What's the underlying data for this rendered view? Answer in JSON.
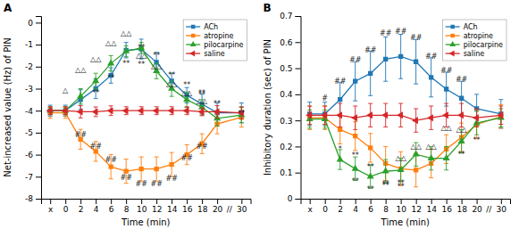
{
  "chart_data": [
    {
      "type": "line",
      "title": "A",
      "x_label": "Time (min)",
      "y_label": "Net-increased value (Hz) of PIN",
      "categories": [
        "x",
        "0",
        "2",
        "4",
        "6",
        "8",
        "10",
        "12",
        "14",
        "16",
        "18",
        "20",
        "30"
      ],
      "x_break": "//",
      "ylim": [
        -8,
        0.3
      ],
      "yticks": [
        0,
        -1,
        -2,
        -3,
        -4,
        -5,
        -6,
        -7,
        -8
      ],
      "grid": false,
      "legend": "upper right",
      "series": [
        {
          "name": "ACh",
          "marker": "square",
          "values": [
            -4.0,
            -4.0,
            -3.5,
            -3.0,
            -2.4,
            -1.25,
            -1.2,
            -1.8,
            -2.65,
            -3.3,
            -3.7,
            -4.1,
            -4.1
          ],
          "errors": [
            0.25,
            0.25,
            0.45,
            0.45,
            0.35,
            0.35,
            0.45,
            0.45,
            0.35,
            0.35,
            0.45,
            0.45,
            0.45
          ]
        },
        {
          "name": "atropine",
          "marker": "square",
          "values": [
            -4.1,
            -4.1,
            -5.3,
            -5.85,
            -6.55,
            -6.75,
            -6.65,
            -6.65,
            -6.45,
            -6.0,
            -5.5,
            -4.6,
            -4.3
          ],
          "errors": [
            0.25,
            0.25,
            0.45,
            0.45,
            0.55,
            0.55,
            0.55,
            0.55,
            0.55,
            0.45,
            0.45,
            0.45,
            0.45
          ]
        },
        {
          "name": "pilocarpine",
          "marker": "triangle-up",
          "values": [
            -4.0,
            -4.0,
            -3.35,
            -2.65,
            -1.85,
            -1.3,
            -1.15,
            -2.2,
            -3.0,
            -3.5,
            -3.85,
            -4.35,
            -4.2
          ],
          "errors": [
            0.18,
            0.18,
            0.35,
            0.35,
            0.35,
            0.25,
            0.25,
            0.35,
            0.35,
            0.35,
            0.35,
            0.35,
            0.35
          ]
        },
        {
          "name": "saline",
          "marker": "triangle-left",
          "values": [
            -4.0,
            -4.0,
            -4.05,
            -4.05,
            -4.0,
            -4.0,
            -4.0,
            -4.0,
            -4.0,
            -4.0,
            -4.05,
            -4.05,
            -4.1
          ],
          "errors": [
            0.18,
            0.18,
            0.28,
            0.22,
            0.22,
            0.18,
            0.18,
            0.18,
            0.18,
            0.18,
            0.18,
            0.28,
            0.28
          ]
        }
      ],
      "annotations": [
        {
          "text": "△",
          "x": "0",
          "y": -3.1
        },
        {
          "text": "△△",
          "x": "2",
          "y": -2.15
        },
        {
          "text": "△△",
          "x": "4",
          "y": -1.65
        },
        {
          "text": "△△",
          "x": "6",
          "y": -0.95
        },
        {
          "text": "△△",
          "x": "8",
          "y": -0.5
        },
        {
          "text": "△△",
          "x": "10",
          "y": -1.5
        },
        {
          "text": "△△",
          "x": "12",
          "y": -2.0
        },
        {
          "text": "△△",
          "x": "14",
          "y": -2.8
        },
        {
          "text": "△△",
          "x": "16",
          "y": -3.2
        },
        {
          "text": "△△",
          "x": "18",
          "y": -3.55
        },
        {
          "text": "##",
          "x": "2",
          "y": -5.1
        },
        {
          "text": "##",
          "x": "4",
          "y": -5.65
        },
        {
          "text": "##",
          "x": "6",
          "y": -6.25
        },
        {
          "text": "##",
          "x": "8",
          "y": -7.05
        },
        {
          "text": "##",
          "x": "10",
          "y": -7.35
        },
        {
          "text": "##",
          "x": "12",
          "y": -7.35
        },
        {
          "text": "##",
          "x": "14",
          "y": -7.1
        },
        {
          "text": "##",
          "x": "16",
          "y": -6.15
        },
        {
          "text": "##",
          "x": "18",
          "y": -5.65
        },
        {
          "text": "**",
          "x": "4",
          "y": -3.2
        },
        {
          "text": "**",
          "x": "6",
          "y": -2.5
        },
        {
          "text": "**",
          "x": "10",
          "y": -1.9
        },
        {
          "text": "**",
          "x": "12",
          "y": -1.5
        },
        {
          "text": "**",
          "x": "14",
          "y": -2.4
        },
        {
          "text": "**",
          "x": "16",
          "y": -2.85
        },
        {
          "text": "**",
          "x": "18",
          "y": -3.3
        },
        {
          "text": "**",
          "x": "8",
          "y": -1.85
        },
        {
          "text": "**",
          "x": "10",
          "y": -1.15
        },
        {
          "text": "**",
          "x": "18",
          "y": -3.2
        },
        {
          "text": "**",
          "x": "20",
          "y": -3.7
        },
        {
          "text": "**",
          "x": "30",
          "y": -4.15
        }
      ]
    },
    {
      "type": "line",
      "title": "B",
      "x_label": "Time (min)",
      "y_label": "Inhibitory duration (sec) of PIN",
      "categories": [
        "x",
        "0",
        "2",
        "4",
        "6",
        "8",
        "10",
        "12",
        "14",
        "16",
        "18",
        "20",
        "30"
      ],
      "x_break": "//",
      "ylim": [
        0,
        0.7
      ],
      "yticks": [
        0,
        0.1,
        0.2,
        0.3,
        0.4,
        0.5,
        0.6,
        0.7
      ],
      "grid": false,
      "legend": "upper right",
      "series": [
        {
          "name": "ACh",
          "marker": "square",
          "values": [
            0.325,
            0.325,
            0.38,
            0.45,
            0.48,
            0.535,
            0.545,
            0.525,
            0.465,
            0.42,
            0.385,
            0.345,
            0.325
          ],
          "errors": [
            0.045,
            0.045,
            0.065,
            0.075,
            0.085,
            0.085,
            0.085,
            0.085,
            0.075,
            0.065,
            0.065,
            0.055,
            0.055
          ]
        },
        {
          "name": "atropine",
          "marker": "square",
          "values": [
            0.31,
            0.31,
            0.265,
            0.24,
            0.195,
            0.135,
            0.115,
            0.11,
            0.135,
            0.19,
            0.235,
            0.285,
            0.315
          ],
          "errors": [
            0.045,
            0.045,
            0.055,
            0.055,
            0.055,
            0.065,
            0.065,
            0.065,
            0.055,
            0.055,
            0.055,
            0.055,
            0.045
          ]
        },
        {
          "name": "pilocarpine",
          "marker": "triangle-up",
          "values": [
            0.305,
            0.305,
            0.15,
            0.115,
            0.085,
            0.105,
            0.11,
            0.17,
            0.155,
            0.155,
            0.22,
            0.29,
            0.31
          ],
          "errors": [
            0.035,
            0.035,
            0.038,
            0.045,
            0.045,
            0.045,
            0.045,
            0.045,
            0.045,
            0.045,
            0.045,
            0.045,
            0.035
          ]
        },
        {
          "name": "saline",
          "marker": "triangle-left",
          "values": [
            0.32,
            0.32,
            0.32,
            0.31,
            0.32,
            0.32,
            0.32,
            0.3,
            0.31,
            0.32,
            0.32,
            0.31,
            0.32
          ],
          "errors": [
            0.035,
            0.035,
            0.045,
            0.045,
            0.045,
            0.045,
            0.045,
            0.045,
            0.045,
            0.045,
            0.045,
            0.035,
            0.035
          ]
        }
      ],
      "annotations": [
        {
          "text": "#",
          "x": "0",
          "y": 0.385
        },
        {
          "text": "##",
          "x": "2",
          "y": 0.45
        },
        {
          "text": "##",
          "x": "4",
          "y": 0.53
        },
        {
          "text": "##",
          "x": "6",
          "y": 0.57
        },
        {
          "text": "##",
          "x": "8",
          "y": 0.635
        },
        {
          "text": "##",
          "x": "10",
          "y": 0.64
        },
        {
          "text": "##",
          "x": "12",
          "y": 0.615
        },
        {
          "text": "##",
          "x": "14",
          "y": 0.545
        },
        {
          "text": "##",
          "x": "16",
          "y": 0.49
        },
        {
          "text": "##",
          "x": "18",
          "y": 0.455
        },
        {
          "text": "*",
          "x": "2",
          "y": 0.19
        },
        {
          "text": "**",
          "x": "4",
          "y": 0.165
        },
        {
          "text": "**",
          "x": "6",
          "y": 0.12
        },
        {
          "text": "**",
          "x": "8",
          "y": 0.05
        },
        {
          "text": "**",
          "x": "10",
          "y": 0.045
        },
        {
          "text": "**",
          "x": "18",
          "y": 0.17
        },
        {
          "text": "**",
          "x": "20",
          "y": 0.225
        },
        {
          "text": "△△",
          "x": "10",
          "y": 0.155
        },
        {
          "text": "△△",
          "x": "12",
          "y": 0.2
        },
        {
          "text": "△△",
          "x": "14",
          "y": 0.2
        },
        {
          "text": "△△",
          "x": "16",
          "y": 0.27
        },
        {
          "text": "△△",
          "x": "18",
          "y": 0.265
        },
        {
          "text": "**",
          "x": "4",
          "y": 0.065
        },
        {
          "text": "**",
          "x": "6",
          "y": 0.035
        },
        {
          "text": "**",
          "x": "8",
          "y": 0.055
        },
        {
          "text": "**",
          "x": "10",
          "y": 0.06
        }
      ]
    }
  ]
}
